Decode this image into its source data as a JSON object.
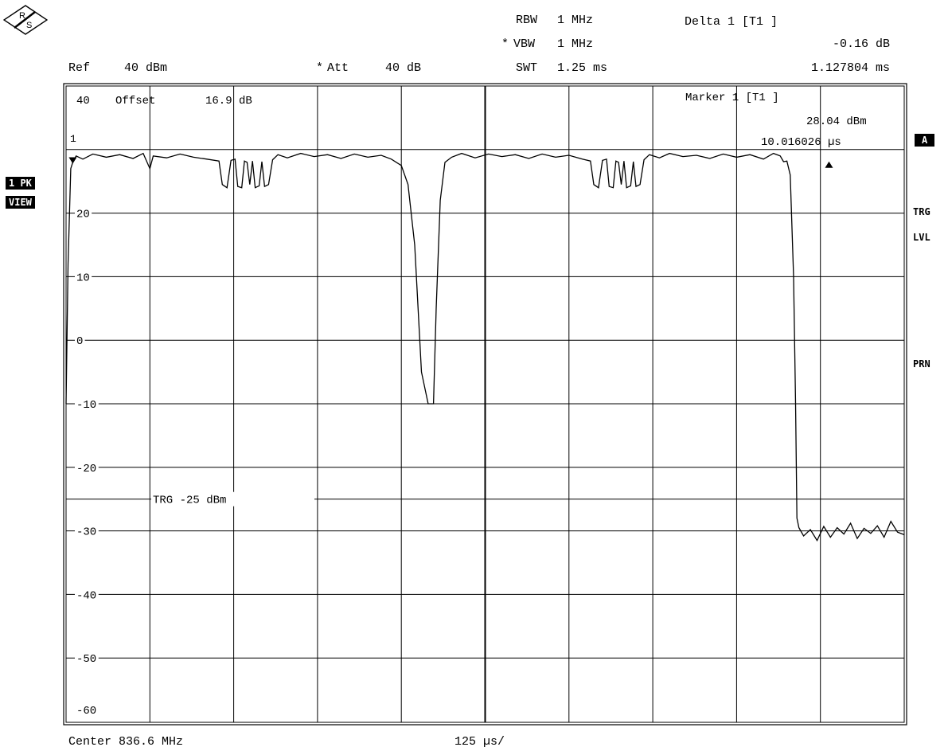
{
  "header": {
    "ref_label": "Ref",
    "ref_value": "40 dBm",
    "att_star": "*",
    "att_label": "Att",
    "att_value": "40 dB",
    "rbw_label": "RBW",
    "rbw_value": "1 MHz",
    "vbw_star": "*",
    "vbw_label": "VBW",
    "vbw_value": "1 MHz",
    "swt_label": "SWT",
    "swt_value": "1.25 ms",
    "delta_label": "Delta 1 [T1 ]",
    "delta_level": "-0.16 dB",
    "delta_time": "1.127804 ms"
  },
  "plot_text": {
    "offset_label": "Offset",
    "offset_value": "16.9 dB",
    "marker_label": "Marker 1 [T1 ]",
    "marker_level": "28.04 dBm",
    "marker_time": "10.016026 µs",
    "marker_number": "1",
    "trg_line_label": "TRG -25 dBm"
  },
  "left_badges": {
    "trace": "1 PK",
    "view": "VIEW"
  },
  "right_side": {
    "a_badge": "A",
    "trg": "TRG",
    "lvl": "LVL",
    "prn": "PRN"
  },
  "footer": {
    "center": "Center 836.6 MHz",
    "span": "125 µs/"
  },
  "colors": {
    "trace": "#000000",
    "grid": "#000000",
    "background": "#ffffff"
  },
  "chart_data": {
    "type": "line",
    "title": "",
    "xlabel": "125 µs/",
    "ylabel": "",
    "x_unit": "µs",
    "y_unit": "dBm",
    "xlim": [
      0,
      1250
    ],
    "ylim": [
      -65,
      40
    ],
    "y_ticks": [
      40,
      20,
      10,
      0,
      -10,
      -20,
      -30,
      -40,
      -50,
      -60
    ],
    "y_tick_labels": [
      "40",
      "20",
      "10",
      "0",
      "-10",
      "-20",
      "-30",
      "-40",
      "-50",
      "-60"
    ],
    "x_divisions": 10,
    "grid": true,
    "trigger_level": -25,
    "markers": [
      {
        "name": "1",
        "x": 10.0,
        "y": 28.04
      },
      {
        "name": "D1",
        "x": 1137.8,
        "y": 27.88
      }
    ],
    "series": [
      {
        "values": [
          [
            0,
            -10
          ],
          [
            3,
            12
          ],
          [
            7,
            27
          ],
          [
            10,
            28
          ],
          [
            15,
            29
          ],
          [
            25,
            28.5
          ],
          [
            40,
            29.3
          ],
          [
            60,
            28.8
          ],
          [
            80,
            29.2
          ],
          [
            100,
            28.6
          ],
          [
            115,
            29.4
          ],
          [
            125,
            27
          ],
          [
            130,
            29
          ],
          [
            150,
            28.7
          ],
          [
            170,
            29.3
          ],
          [
            190,
            28.8
          ],
          [
            210,
            28.5
          ],
          [
            228,
            28.2
          ],
          [
            233,
            24.5
          ],
          [
            240,
            24
          ],
          [
            246,
            28.3
          ],
          [
            252,
            28.5
          ],
          [
            256,
            24.2
          ],
          [
            262,
            24
          ],
          [
            266,
            28.2
          ],
          [
            270,
            28
          ],
          [
            274,
            24.5
          ],
          [
            278,
            28.2
          ],
          [
            282,
            24
          ],
          [
            288,
            24.3
          ],
          [
            292,
            28.1
          ],
          [
            296,
            24.2
          ],
          [
            302,
            24.5
          ],
          [
            308,
            28.4
          ],
          [
            316,
            29.2
          ],
          [
            330,
            28.7
          ],
          [
            350,
            29.4
          ],
          [
            370,
            28.9
          ],
          [
            390,
            29.2
          ],
          [
            410,
            28.6
          ],
          [
            430,
            29.3
          ],
          [
            450,
            28.8
          ],
          [
            470,
            29.1
          ],
          [
            485,
            28.5
          ],
          [
            500,
            27.5
          ],
          [
            510,
            24.5
          ],
          [
            520,
            15
          ],
          [
            530,
            -5
          ],
          [
            540,
            -10
          ],
          [
            548,
            -10
          ],
          [
            552,
            5
          ],
          [
            558,
            22
          ],
          [
            565,
            28
          ],
          [
            575,
            28.8
          ],
          [
            590,
            29.4
          ],
          [
            610,
            28.7
          ],
          [
            630,
            29.3
          ],
          [
            650,
            28.9
          ],
          [
            670,
            29.2
          ],
          [
            690,
            28.6
          ],
          [
            710,
            29.3
          ],
          [
            730,
            28.8
          ],
          [
            750,
            29.1
          ],
          [
            770,
            28.5
          ],
          [
            782,
            28.2
          ],
          [
            787,
            24.5
          ],
          [
            794,
            24
          ],
          [
            800,
            28.3
          ],
          [
            806,
            28.5
          ],
          [
            810,
            24.2
          ],
          [
            816,
            24
          ],
          [
            820,
            28.2
          ],
          [
            824,
            28
          ],
          [
            828,
            24.5
          ],
          [
            832,
            28.2
          ],
          [
            836,
            24
          ],
          [
            842,
            24.3
          ],
          [
            846,
            28.1
          ],
          [
            850,
            24.2
          ],
          [
            856,
            24.5
          ],
          [
            862,
            28.4
          ],
          [
            870,
            29.2
          ],
          [
            885,
            28.7
          ],
          [
            900,
            29.4
          ],
          [
            920,
            28.9
          ],
          [
            940,
            29.1
          ],
          [
            960,
            28.6
          ],
          [
            980,
            29.3
          ],
          [
            1000,
            28.8
          ],
          [
            1020,
            29.2
          ],
          [
            1040,
            28.5
          ],
          [
            1055,
            29.4
          ],
          [
            1065,
            29
          ],
          [
            1070,
            28.1
          ],
          [
            1075,
            28.2
          ],
          [
            1080,
            26
          ],
          [
            1085,
            10
          ],
          [
            1088,
            -10
          ],
          [
            1090,
            -28
          ],
          [
            1093,
            -29.5
          ],
          [
            1100,
            -30.8
          ],
          [
            1110,
            -29.8
          ],
          [
            1120,
            -31.5
          ],
          [
            1130,
            -29.3
          ],
          [
            1140,
            -31
          ],
          [
            1150,
            -29.5
          ],
          [
            1160,
            -30.5
          ],
          [
            1170,
            -28.8
          ],
          [
            1180,
            -31.2
          ],
          [
            1190,
            -29.6
          ],
          [
            1200,
            -30.4
          ],
          [
            1210,
            -29.2
          ],
          [
            1220,
            -31
          ],
          [
            1230,
            -28.5
          ],
          [
            1240,
            -30.2
          ],
          [
            1250,
            -30.6
          ]
        ]
      }
    ]
  }
}
